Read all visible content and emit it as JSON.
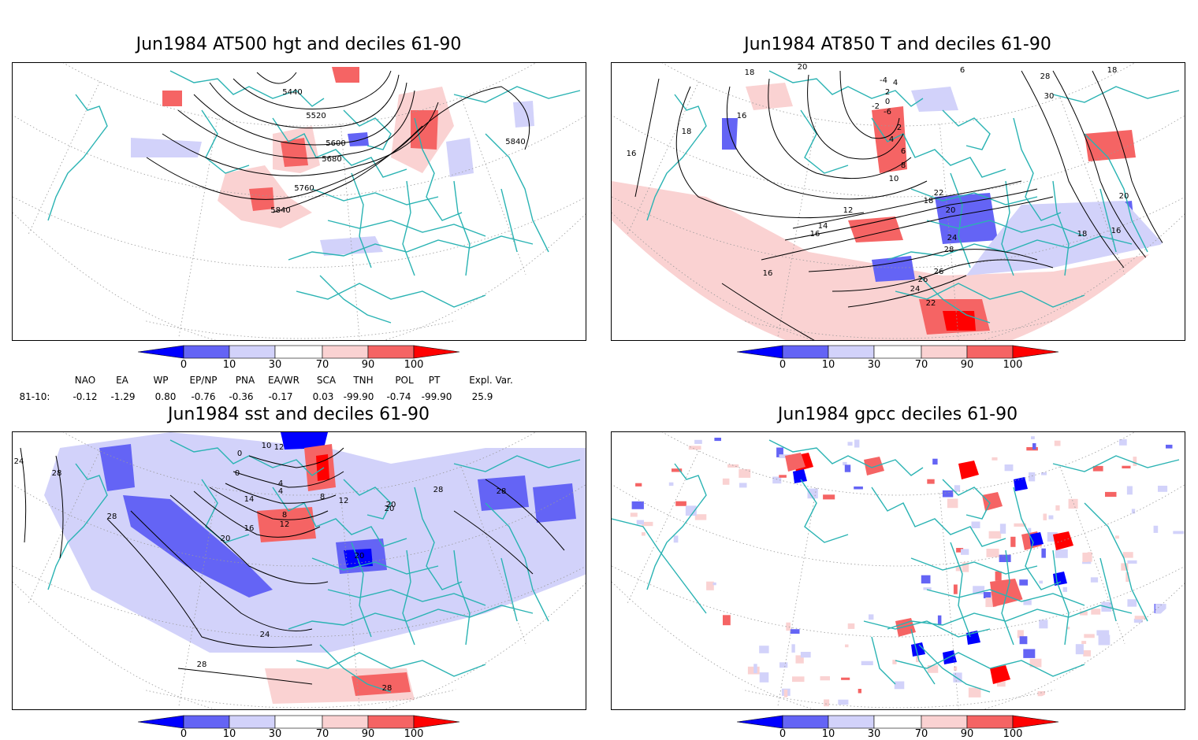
{
  "panels": [
    {
      "title": "Jun1984 AT500 hgt and deciles 61-90",
      "contour_labels": [
        "5440",
        "5520",
        "5600",
        "5680",
        "5760",
        "5840",
        "5840"
      ]
    },
    {
      "title": "Jun1984 AT850 T and deciles 61-90",
      "contour_labels": [
        "18",
        "20",
        "28",
        "30",
        "18",
        "6",
        "4",
        "2",
        "0",
        "-6",
        "-4",
        "-2",
        "16",
        "18",
        "16",
        "2",
        "4",
        "6",
        "8",
        "10",
        "12",
        "14",
        "16",
        "20",
        "18",
        "22",
        "24",
        "28",
        "26",
        "26",
        "24",
        "22",
        "20",
        "18",
        "16",
        "16"
      ]
    },
    {
      "title": "Jun1984 sst and deciles 61-90",
      "contour_labels": [
        "24",
        "28",
        "28",
        "0",
        "0",
        "10",
        "12",
        "4",
        "8",
        "4",
        "14",
        "8",
        "12",
        "16",
        "12",
        "20",
        "20",
        "20",
        "28",
        "28",
        "24",
        "28",
        "28",
        "20"
      ]
    },
    {
      "title": "Jun1984 gpcc deciles 61-90",
      "contour_labels": []
    }
  ],
  "colorbar": {
    "labels": [
      "0",
      "10",
      "30",
      "70",
      "90",
      "100"
    ],
    "colors": [
      "#0000ff",
      "#6464f5",
      "#d2d2fa",
      "#ffffff",
      "#fad2d2",
      "#f56464",
      "#ff0000"
    ]
  },
  "indices": {
    "headers": [
      "NAO",
      "EA",
      "WP",
      "EP/NP",
      "PNA",
      "EA/WR",
      "SCA",
      "TNH",
      "POL",
      "PT",
      "Expl. Var."
    ],
    "row_label": "81-10:",
    "values": [
      "-0.12",
      "-1.29",
      "0.80",
      "-0.76",
      "-0.36",
      "-0.17",
      "0.03",
      "-99.90",
      "-0.74",
      "-99.90",
      "25.9"
    ]
  },
  "colors": {
    "coast": "#2ab3b3",
    "contour": "#000000",
    "grid": "#9a9a9a"
  }
}
